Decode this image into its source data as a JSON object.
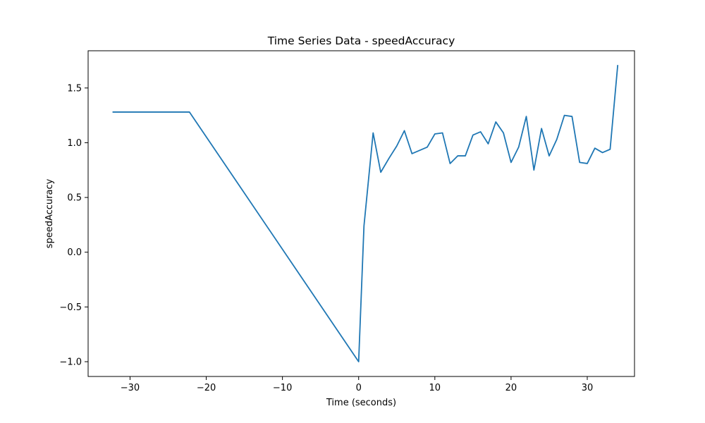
{
  "chart_data": {
    "type": "line",
    "title": "Time Series Data - speedAccuracy",
    "xlabel": "Time (seconds)",
    "ylabel": "speedAccuracy",
    "xlim": [
      -35.5,
      36.2
    ],
    "ylim": [
      -1.135,
      1.84
    ],
    "xticks": [
      -30,
      -20,
      -10,
      0,
      10,
      20,
      30
    ],
    "xtick_labels": [
      "−30",
      "−20",
      "−10",
      "0",
      "10",
      "20",
      "30"
    ],
    "yticks": [
      -1.0,
      -0.5,
      0.0,
      0.5,
      1.0,
      1.5
    ],
    "ytick_labels": [
      "−1.0",
      "−0.5",
      "0.0",
      "0.5",
      "1.0",
      "1.5"
    ],
    "grid": false,
    "legend": "none",
    "line_color": "#1f77b4",
    "series": [
      {
        "x": [
          -32.3,
          -22.2,
          0,
          0.7,
          1.9,
          2.9,
          4.0,
          5.0,
          6.0,
          7.0,
          8.0,
          9.0,
          10.0,
          11.0,
          12.0,
          13.0,
          14.0,
          15.0,
          16.0,
          17.0,
          18.0,
          19.0,
          20.0,
          21.0,
          22.0,
          23.0,
          24.0,
          25.0,
          26.0,
          27.0,
          28.0,
          29.0,
          30.0,
          31.0,
          32.0,
          33.0,
          34.0
        ],
        "y": [
          1.28,
          1.28,
          -1.0,
          0.24,
          1.09,
          0.73,
          0.86,
          0.97,
          1.11,
          0.9,
          0.93,
          0.96,
          1.08,
          1.09,
          0.81,
          0.88,
          0.88,
          1.07,
          1.1,
          0.99,
          1.19,
          1.09,
          0.82,
          0.96,
          1.24,
          0.75,
          1.13,
          0.88,
          1.03,
          1.25,
          1.24,
          0.82,
          0.81,
          0.95,
          0.91,
          0.94,
          1.71
        ]
      }
    ]
  }
}
